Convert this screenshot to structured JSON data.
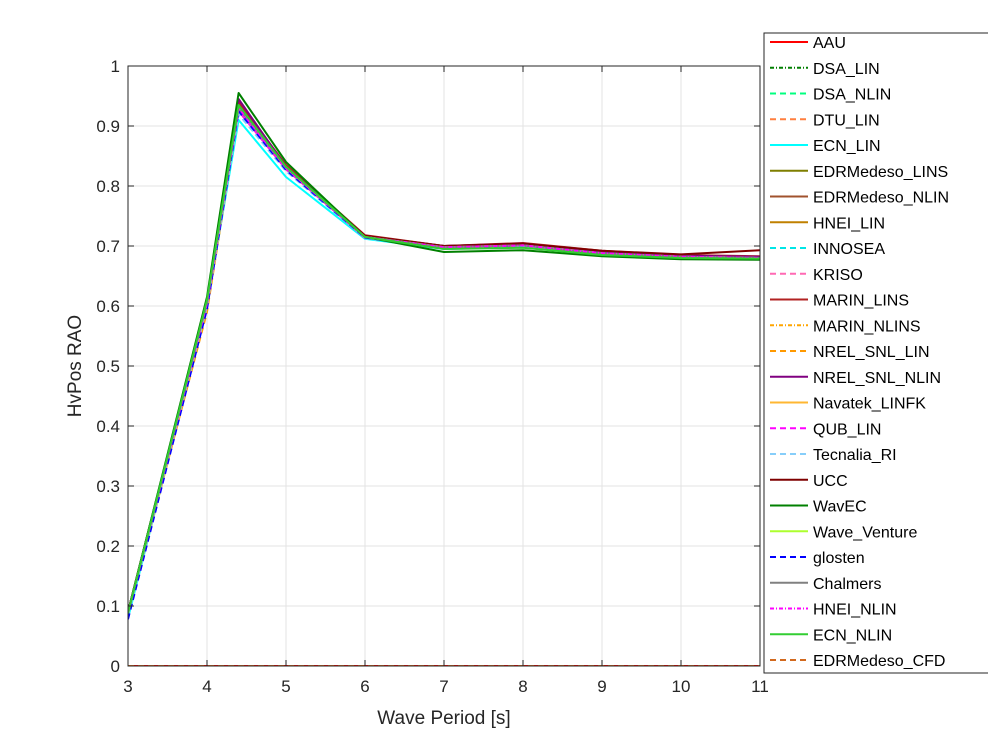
{
  "chart_data": {
    "type": "line",
    "title": "",
    "xlabel": "Wave Period [s]",
    "ylabel": "HvPos RAO",
    "xlim": [
      3,
      11
    ],
    "ylim": [
      0,
      1
    ],
    "xticks": [
      3,
      4,
      5,
      6,
      7,
      8,
      9,
      10,
      11
    ],
    "yticks": [
      0,
      0.1,
      0.2,
      0.3,
      0.4,
      0.5,
      0.6,
      0.7,
      0.8,
      0.9,
      1
    ],
    "grid": true,
    "legend_position": "right",
    "x": [
      3,
      4,
      4.4,
      5,
      6,
      7,
      8,
      9,
      10,
      11
    ],
    "series": [
      {
        "name": "AAU",
        "color": "#ff0000",
        "dash": "solid",
        "values": [
          0,
          0,
          0,
          0,
          0,
          0,
          0,
          0,
          0,
          0
        ]
      },
      {
        "name": "DSA_LIN",
        "color": "#007f00",
        "dash": "dashdot",
        "values": [
          0.085,
          0.61,
          0.935,
          0.83,
          0.715,
          0.697,
          0.7,
          0.687,
          0.682,
          0.68
        ]
      },
      {
        "name": "DSA_NLIN",
        "color": "#00ff7f",
        "dash": "dashed",
        "values": [
          0,
          0,
          0,
          0,
          0,
          0,
          0,
          0,
          0,
          0
        ]
      },
      {
        "name": "DTU_LIN",
        "color": "#ff7f3f",
        "dash": "dashed",
        "values": [
          0,
          0,
          0,
          0,
          0,
          0,
          0,
          0,
          0,
          0
        ]
      },
      {
        "name": "ECN_LIN",
        "color": "#00ffff",
        "dash": "solid",
        "values": [
          0.08,
          0.6,
          0.91,
          0.815,
          0.712,
          0.695,
          0.698,
          0.686,
          0.681,
          0.68
        ]
      },
      {
        "name": "EDRMedeso_LINS",
        "color": "#7f7f00",
        "dash": "solid",
        "values": [
          0.09,
          0.61,
          0.93,
          0.835,
          0.717,
          0.7,
          0.703,
          0.69,
          0.684,
          0.682
        ]
      },
      {
        "name": "EDRMedeso_NLIN",
        "color": "#a0522d",
        "dash": "solid",
        "values": [
          0.09,
          0.605,
          0.928,
          0.832,
          0.716,
          0.699,
          0.702,
          0.689,
          0.683,
          0.681
        ]
      },
      {
        "name": "HNEI_LIN",
        "color": "#c08000",
        "dash": "solid",
        "values": [
          0.088,
          0.608,
          0.93,
          0.83,
          0.715,
          0.698,
          0.701,
          0.688,
          0.682,
          0.68
        ]
      },
      {
        "name": "INNOSEA",
        "color": "#00e6e6",
        "dash": "dashed",
        "values": [
          0.085,
          0.6,
          0.92,
          0.825,
          0.713,
          0.697,
          0.7,
          0.687,
          0.682,
          0.68
        ]
      },
      {
        "name": "KRISO",
        "color": "#ff69b4",
        "dash": "dashed",
        "values": [
          0.087,
          0.605,
          0.925,
          0.828,
          0.714,
          0.698,
          0.701,
          0.688,
          0.682,
          0.68
        ]
      },
      {
        "name": "MARIN_LINS",
        "color": "#b22222",
        "dash": "solid",
        "values": [
          0.09,
          0.61,
          0.94,
          0.835,
          0.718,
          0.7,
          0.705,
          0.692,
          0.685,
          0.683
        ]
      },
      {
        "name": "MARIN_NLINS",
        "color": "#ffa500",
        "dash": "dashdot",
        "values": [
          0.088,
          0.6,
          0.93,
          0.83,
          0.715,
          0.699,
          0.702,
          0.689,
          0.683,
          0.681
        ]
      },
      {
        "name": "NREL_SNL_LIN",
        "color": "#ff9900",
        "dash": "dashed",
        "values": [
          0.087,
          0.59,
          0.925,
          0.828,
          0.714,
          0.698,
          0.701,
          0.688,
          0.682,
          0.68
        ]
      },
      {
        "name": "NREL_SNL_NLIN",
        "color": "#800080",
        "dash": "solid",
        "values": [
          0.09,
          0.61,
          0.945,
          0.832,
          0.716,
          0.7,
          0.704,
          0.69,
          0.684,
          0.682
        ]
      },
      {
        "name": "Navatek_LINFK",
        "color": "#ffb732",
        "dash": "solid",
        "values": [
          0.088,
          0.605,
          0.93,
          0.83,
          0.715,
          0.698,
          0.701,
          0.688,
          0.682,
          0.68
        ]
      },
      {
        "name": "QUB_LIN",
        "color": "#ff00ff",
        "dash": "dashed",
        "values": [
          0.087,
          0.6,
          0.925,
          0.828,
          0.714,
          0.698,
          0.701,
          0.688,
          0.682,
          0.68
        ]
      },
      {
        "name": "Tecnalia_RI",
        "color": "#87cefa",
        "dash": "dashed",
        "values": [
          0.085,
          0.6,
          0.92,
          0.825,
          0.713,
          0.697,
          0.7,
          0.687,
          0.682,
          0.68
        ]
      },
      {
        "name": "UCC",
        "color": "#7f0000",
        "dash": "solid",
        "values": [
          0.09,
          0.61,
          0.935,
          0.83,
          0.717,
          0.7,
          0.704,
          0.692,
          0.686,
          0.693
        ]
      },
      {
        "name": "WavEC",
        "color": "#008000",
        "dash": "solid",
        "values": [
          0.09,
          0.615,
          0.955,
          0.84,
          0.715,
          0.69,
          0.693,
          0.683,
          0.678,
          0.677
        ]
      },
      {
        "name": "Wave_Venture",
        "color": "#adff2f",
        "dash": "solid",
        "values": [
          0.088,
          0.605,
          0.93,
          0.83,
          0.715,
          0.698,
          0.701,
          0.688,
          0.682,
          0.68
        ]
      },
      {
        "name": "glosten",
        "color": "#0000ff",
        "dash": "dashed",
        "values": [
          0.078,
          0.595,
          0.925,
          0.827,
          0.714,
          0.697,
          0.701,
          0.688,
          0.682,
          0.68
        ]
      },
      {
        "name": "Chalmers",
        "color": "#808080",
        "dash": "solid",
        "values": [
          0.088,
          0.605,
          0.93,
          0.83,
          0.715,
          0.698,
          0.701,
          0.688,
          0.682,
          0.68
        ]
      },
      {
        "name": "HNEI_NLIN",
        "color": "#ff00ff",
        "dash": "dashdot",
        "values": [
          0.088,
          0.605,
          0.93,
          0.83,
          0.715,
          0.698,
          0.701,
          0.688,
          0.682,
          0.68
        ]
      },
      {
        "name": "ECN_NLIN",
        "color": "#32cd32",
        "dash": "solid",
        "values": [
          0.088,
          0.61,
          0.935,
          0.832,
          0.715,
          0.695,
          0.697,
          0.685,
          0.68,
          0.679
        ]
      },
      {
        "name": "EDRMedeso_CFD",
        "color": "#d2691e",
        "dash": "dashed",
        "values": [
          0,
          0,
          0,
          0,
          0,
          0,
          0,
          0,
          0,
          0
        ]
      }
    ]
  }
}
